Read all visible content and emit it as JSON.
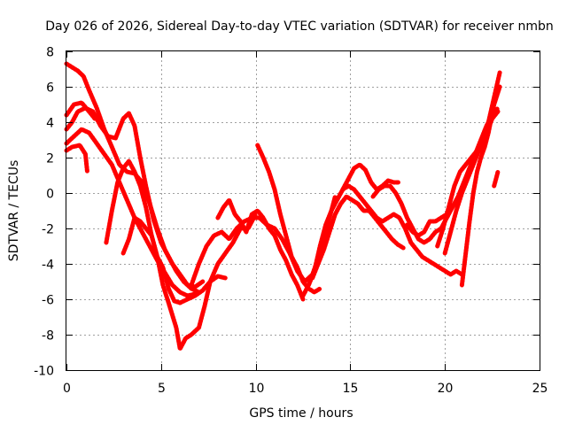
{
  "chart_data": {
    "type": "line",
    "title": "Day 026 of 2026, Sidereal Day-to-day VTEC variation (SDTVAR) for receiver nmbn",
    "xlabel": "GPS time / hours",
    "ylabel": "SDTVAR / TECUs",
    "xlim": [
      0,
      25
    ],
    "ylim": [
      -10,
      8
    ],
    "xticks": [
      0,
      5,
      10,
      15,
      20,
      25
    ],
    "yticks": [
      -10,
      -8,
      -6,
      -4,
      -2,
      0,
      2,
      4,
      6,
      8
    ],
    "grid": true,
    "color": "#ff0000",
    "series": [
      {
        "x": [
          0,
          0.3,
          0.6,
          0.9,
          1.2,
          1.6,
          2.0,
          2.4,
          2.8,
          3.2,
          3.6,
          4.0,
          4.4,
          4.8,
          5.2,
          5.6,
          6.0,
          6.4,
          6.8,
          7.2
        ],
        "y": [
          7.3,
          7.1,
          6.9,
          6.6,
          5.8,
          4.8,
          3.6,
          2.6,
          1.6,
          1.2,
          1.1,
          0.6,
          -0.6,
          -2.0,
          -3.2,
          -4.0,
          -4.6,
          -5.2,
          -5.3,
          -5.0
        ]
      },
      {
        "x": [
          0,
          0.4,
          0.8,
          1.2,
          1.5
        ],
        "y": [
          4.4,
          5.0,
          5.1,
          4.6,
          4.2
        ]
      },
      {
        "x": [
          0,
          0.3,
          0.6,
          1.0,
          1.4,
          1.8,
          2.2,
          2.6,
          3.0,
          3.3,
          3.6,
          3.9,
          4.2,
          4.6,
          5.0,
          5.4,
          5.8,
          6.2,
          6.6,
          7.0
        ],
        "y": [
          3.6,
          4.0,
          4.6,
          4.8,
          4.6,
          3.8,
          3.2,
          3.1,
          4.2,
          4.5,
          3.8,
          2.0,
          0.4,
          -1.5,
          -2.8,
          -3.6,
          -4.4,
          -5.0,
          -5.4,
          -5.6
        ]
      },
      {
        "x": [
          0,
          0.4,
          0.8,
          1.2,
          1.6,
          2.0,
          2.4,
          2.8,
          3.2,
          3.6,
          4.0,
          4.4,
          4.8,
          5.2,
          5.6,
          6.0,
          6.4,
          6.8
        ],
        "y": [
          2.8,
          3.2,
          3.6,
          3.4,
          2.8,
          2.2,
          1.6,
          0.6,
          -0.4,
          -1.4,
          -2.2,
          -3.0,
          -3.8,
          -4.5,
          -5.2,
          -5.6,
          -5.8,
          -5.7
        ]
      },
      {
        "x": [
          0,
          0.3,
          0.7,
          1.0,
          1.1
        ],
        "y": [
          2.4,
          2.6,
          2.7,
          2.2,
          1.2
        ]
      },
      {
        "x": [
          2.1,
          2.4,
          2.7,
          3.0,
          3.3,
          3.6,
          3.9,
          4.2,
          4.5,
          4.8,
          5.1,
          5.4,
          5.7,
          6.0
        ],
        "y": [
          -2.8,
          -1.0,
          0.6,
          1.4,
          1.8,
          1.2,
          0.4,
          -0.8,
          -2.4,
          -3.6,
          -4.2,
          -5.4,
          -6.1,
          -6.2
        ]
      },
      {
        "x": [
          6.0,
          6.4,
          6.8,
          7.2,
          7.6,
          8.0,
          8.4
        ],
        "y": [
          -6.2,
          -6.0,
          -5.8,
          -5.5,
          -5.0,
          -4.7,
          -4.8
        ]
      },
      {
        "x": [
          3.0,
          3.3,
          3.6,
          3.9,
          4.2,
          4.5,
          4.8,
          5.1,
          5.4,
          5.8,
          6.0,
          6.3,
          6.6,
          7.0,
          7.3,
          7.6,
          8.0,
          8.4,
          8.8,
          9.2,
          9.6,
          10.0
        ],
        "y": [
          -3.4,
          -2.6,
          -1.4,
          -1.6,
          -2.0,
          -2.4,
          -3.6,
          -5.2,
          -6.2,
          -7.6,
          -8.8,
          -8.2,
          -8.0,
          -7.6,
          -6.4,
          -5.0,
          -4.0,
          -3.4,
          -2.8,
          -2.0,
          -2.0,
          -1.2
        ]
      },
      {
        "x": [
          6.6,
          7.0,
          7.4,
          7.8,
          8.2,
          8.6,
          9.0,
          9.4,
          9.8,
          10.2,
          10.6,
          11.0,
          11.4,
          11.8,
          12.2,
          12.6,
          13.0,
          13.4,
          13.8,
          14.2
        ],
        "y": [
          -5.2,
          -4.0,
          -3.0,
          -2.4,
          -2.2,
          -2.6,
          -2.0,
          -1.6,
          -1.4,
          -1.4,
          -1.8,
          -2.0,
          -2.6,
          -3.4,
          -4.4,
          -5.0,
          -4.6,
          -3.4,
          -1.8,
          -0.2
        ]
      },
      {
        "x": [
          8.0,
          8.3,
          8.6,
          8.9,
          9.2,
          9.5,
          9.8,
          10.1,
          10.4,
          10.7,
          11.0,
          11.3,
          11.6,
          11.9,
          12.2,
          12.5
        ],
        "y": [
          -1.4,
          -0.8,
          -0.4,
          -1.2,
          -1.6,
          -2.2,
          -1.2,
          -1.0,
          -1.4,
          -2.0,
          -2.4,
          -3.2,
          -3.8,
          -4.6,
          -5.2,
          -6.0
        ]
      },
      {
        "x": [
          10.1,
          10.4,
          10.7,
          11.0,
          11.3,
          11.6,
          11.9,
          12.2,
          12.5,
          12.8,
          13.1,
          13.4
        ],
        "y": [
          2.7,
          2.0,
          1.2,
          0.2,
          -1.2,
          -2.4,
          -3.6,
          -4.2,
          -5.0,
          -5.4,
          -5.6,
          -5.4
        ]
      },
      {
        "x": [
          12.5,
          12.8,
          13.1,
          13.4,
          13.7,
          14.0,
          14.3,
          14.6,
          14.9,
          15.2,
          15.5,
          15.8,
          16.1,
          16.4,
          16.7,
          17.0,
          17.3,
          17.6
        ],
        "y": [
          -5.8,
          -5.2,
          -4.4,
          -3.0,
          -1.8,
          -1.0,
          -0.4,
          0.2,
          0.8,
          1.4,
          1.6,
          1.3,
          0.6,
          0.2,
          0.4,
          0.7,
          0.6,
          0.6
        ]
      },
      {
        "x": [
          13.0,
          13.3,
          13.6,
          13.9,
          14.2,
          14.5,
          14.8,
          15.1,
          15.4,
          15.7,
          16.0,
          16.3,
          16.6,
          16.9,
          17.2,
          17.5,
          17.8
        ],
        "y": [
          -4.8,
          -4.0,
          -3.2,
          -2.2,
          -1.2,
          -0.6,
          -0.2,
          -0.4,
          -0.6,
          -1.0,
          -1.0,
          -1.4,
          -1.8,
          -2.2,
          -2.6,
          -2.9,
          -3.1
        ]
      },
      {
        "x": [
          14.6,
          14.9,
          15.2,
          15.5,
          15.8,
          16.1,
          16.4,
          16.7,
          17.0,
          17.3,
          17.6,
          17.9,
          18.2,
          18.5,
          18.8,
          19.1,
          19.4,
          19.7,
          20.0,
          20.3,
          20.6,
          20.9
        ],
        "y": [
          0.2,
          0.4,
          0.2,
          -0.2,
          -0.6,
          -1.0,
          -1.4,
          -1.6,
          -1.4,
          -1.2,
          -1.4,
          -2.0,
          -2.8,
          -3.2,
          -3.6,
          -3.8,
          -4.0,
          -4.2,
          -4.4,
          -4.6,
          -4.4,
          -4.6
        ]
      },
      {
        "x": [
          16.2,
          16.5,
          16.8,
          17.1,
          17.4,
          17.7,
          18.0,
          18.3,
          18.6,
          18.9,
          19.2,
          19.5,
          19.8,
          20.1,
          20.4,
          20.7,
          21.0,
          21.3,
          21.6,
          21.9,
          22.2,
          22.5,
          22.8
        ],
        "y": [
          -0.2,
          0.2,
          0.4,
          0.4,
          0.0,
          -0.6,
          -1.4,
          -2.0,
          -2.6,
          -2.8,
          -2.6,
          -2.2,
          -2.0,
          -1.4,
          -0.8,
          -0.2,
          0.6,
          1.4,
          2.2,
          3.0,
          3.8,
          4.4,
          4.8
        ]
      },
      {
        "x": [
          18.0,
          18.3,
          18.6,
          18.9,
          19.2,
          19.5,
          19.8,
          20.1,
          20.4,
          20.7,
          21.0,
          21.3,
          21.6,
          21.9,
          22.2,
          22.5,
          22.8
        ],
        "y": [
          -1.8,
          -2.2,
          -2.4,
          -2.2,
          -1.6,
          -1.6,
          -1.4,
          -1.2,
          -0.8,
          -0.2,
          0.6,
          1.4,
          2.0,
          2.6,
          3.4,
          4.2,
          4.6
        ]
      },
      {
        "x": [
          19.6,
          19.9,
          20.2,
          20.5,
          20.8,
          21.1,
          21.4,
          21.7,
          22.0,
          22.3,
          22.6,
          22.9
        ],
        "y": [
          -3.0,
          -2.0,
          -0.8,
          0.4,
          1.2,
          1.6,
          2.0,
          2.4,
          3.0,
          4.0,
          5.4,
          6.8
        ]
      },
      {
        "x": [
          20.9,
          21.1,
          21.3,
          21.5,
          21.7,
          21.9,
          22.1,
          22.3,
          22.6,
          22.9
        ],
        "y": [
          -5.2,
          -3.4,
          -1.6,
          0.0,
          1.2,
          2.0,
          2.6,
          3.4,
          5.0,
          6.0
        ]
      },
      {
        "x": [
          20.0,
          20.3,
          20.6,
          20.9,
          21.2,
          21.5,
          21.8,
          22.1
        ],
        "y": [
          -3.4,
          -2.2,
          -1.0,
          0.0,
          0.8,
          1.6,
          2.4,
          3.0
        ]
      },
      {
        "x": [
          22.6,
          22.7,
          22.8
        ],
        "y": [
          0.4,
          0.8,
          1.2
        ]
      }
    ]
  }
}
